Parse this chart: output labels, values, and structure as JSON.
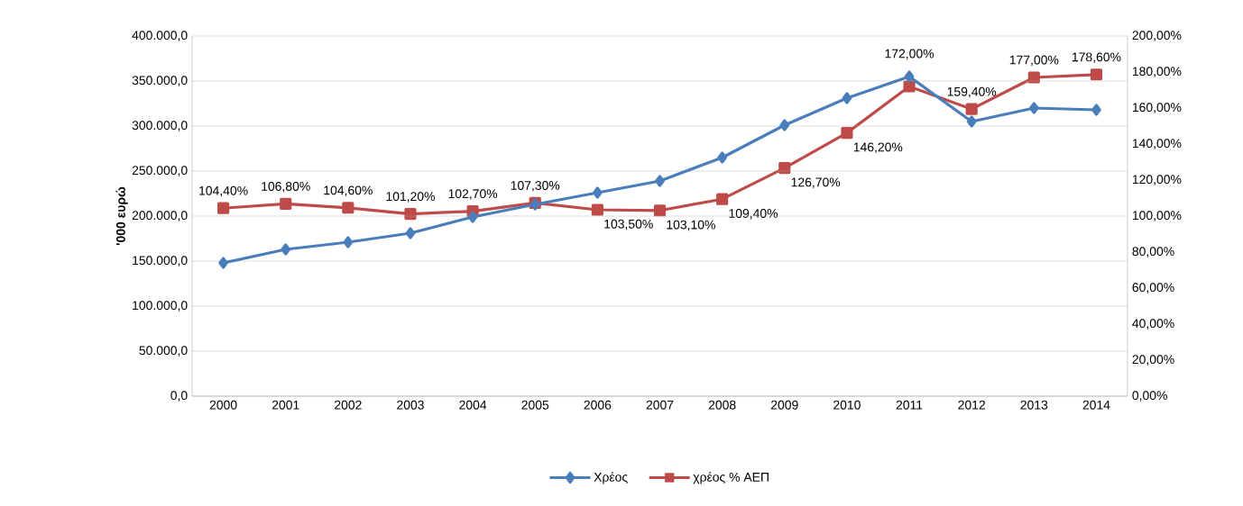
{
  "chart_data": {
    "type": "line",
    "categories": [
      "2000",
      "2001",
      "2002",
      "2003",
      "2004",
      "2005",
      "2006",
      "2007",
      "2008",
      "2009",
      "2010",
      "2011",
      "2012",
      "2013",
      "2014"
    ],
    "ylabel": "'000 ευρώ",
    "series": [
      {
        "name": "Χρέος",
        "color": "#4a7ebb",
        "marker": "diamond",
        "values": [
          148000,
          163000,
          171000,
          181000,
          199000,
          213000,
          226000,
          239000,
          265000,
          301000,
          331000,
          355000,
          305000,
          320000,
          318000
        ]
      },
      {
        "name": "χρέος % ΑΕΠ",
        "color": "#be4b48",
        "marker": "square",
        "axis": "y2",
        "values": [
          104.4,
          106.8,
          104.6,
          101.2,
          102.7,
          107.3,
          103.5,
          103.1,
          109.4,
          126.7,
          146.2,
          172.0,
          159.4,
          177.0,
          178.6
        ],
        "value_labels": [
          "104,40%",
          "106,80%",
          "104,60%",
          "101,20%",
          "102,70%",
          "107,30%",
          "103,50%",
          "103,10%",
          "109,40%",
          "126,70%",
          "146,20%",
          "172,00%",
          "159,40%",
          "177,00%",
          "178,60%"
        ]
      }
    ],
    "ylim": [
      0,
      400000
    ],
    "yticks": [
      {
        "value": 0,
        "label": "0,0"
      },
      {
        "value": 50000,
        "label": "50.000,0"
      },
      {
        "value": 100000,
        "label": "100.000,0"
      },
      {
        "value": 150000,
        "label": "150.000,0"
      },
      {
        "value": 200000,
        "label": "200.000,0"
      },
      {
        "value": 250000,
        "label": "250.000,0"
      },
      {
        "value": 300000,
        "label": "300.000,0"
      },
      {
        "value": 350000,
        "label": "350.000,0"
      },
      {
        "value": 400000,
        "label": "400.000,0"
      }
    ],
    "y2lim": [
      0,
      200
    ],
    "y2ticks": [
      {
        "value": 0,
        "label": "0,00%"
      },
      {
        "value": 20,
        "label": "20,00%"
      },
      {
        "value": 40,
        "label": "40,00%"
      },
      {
        "value": 60,
        "label": "60,00%"
      },
      {
        "value": 80,
        "label": "80,00%"
      },
      {
        "value": 100,
        "label": "100,00%"
      },
      {
        "value": 120,
        "label": "120,00%"
      },
      {
        "value": 140,
        "label": "140,00%"
      },
      {
        "value": 160,
        "label": "160,00%"
      },
      {
        "value": 180,
        "label": "180,00%"
      },
      {
        "value": 200,
        "label": "200,00%"
      }
    ],
    "grid": "y",
    "legend": "bottom"
  }
}
